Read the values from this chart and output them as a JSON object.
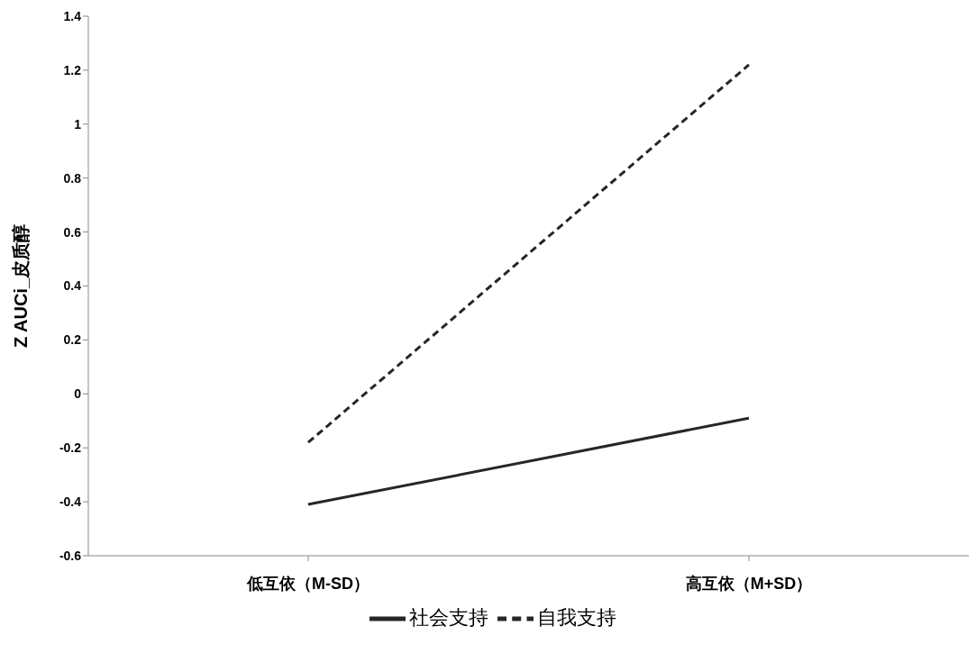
{
  "chart_data": {
    "type": "line",
    "ylabel": "Z AUCi_皮质醇",
    "categories": [
      "低互依（M-SD）",
      "高互依（M+SD）"
    ],
    "series": [
      {
        "name": "社会支持",
        "color": "#262626",
        "values": [
          -0.41,
          -0.09
        ],
        "line_style": "solid"
      },
      {
        "name": "自我支持",
        "color": "#262626",
        "values": [
          -0.18,
          1.22
        ],
        "line_style": "dashed"
      }
    ],
    "ylim": [
      -0.6,
      1.4
    ],
    "yticks": [
      -0.6,
      -0.4,
      -0.2,
      0,
      0.2,
      0.4,
      0.6,
      0.8,
      1,
      1.2,
      1.4
    ],
    "grid": false,
    "legend": "bottom",
    "marker": "none"
  }
}
